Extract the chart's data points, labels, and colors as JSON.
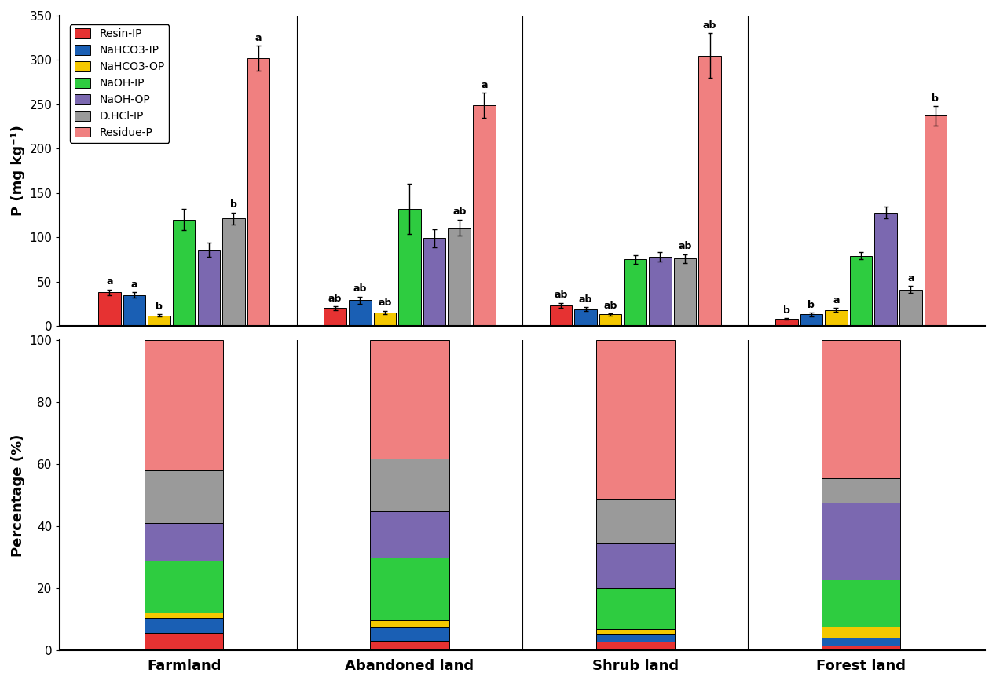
{
  "categories": [
    "Farmland",
    "Abandoned land",
    "Shrub land",
    "Forest land"
  ],
  "fractions": [
    "Resin-IP",
    "NaHCO3-IP",
    "NaHCO3-OP",
    "NaOH-IP",
    "NaOH-OP",
    "D.HCl-IP",
    "Residue-P"
  ],
  "colors": [
    "#e63232",
    "#1a5fb4",
    "#f5c800",
    "#2ecc40",
    "#7b68b0",
    "#9a9a9a",
    "#f08080"
  ],
  "bar_values": {
    "Farmland": [
      38,
      35,
      12,
      120,
      86,
      121,
      302
    ],
    "Abandoned land": [
      20,
      29,
      15,
      132,
      99,
      111,
      249
    ],
    "Shrub land": [
      23,
      19,
      13,
      75,
      78,
      76,
      305
    ],
    "Forest land": [
      8,
      13,
      18,
      79,
      128,
      41,
      237
    ]
  },
  "bar_errors": {
    "Farmland": [
      3,
      3,
      1,
      12,
      8,
      7,
      14
    ],
    "Abandoned land": [
      2,
      4,
      2,
      28,
      10,
      9,
      14
    ],
    "Shrub land": [
      3,
      2,
      1,
      5,
      5,
      5,
      25
    ],
    "Forest land": [
      1,
      2,
      2,
      4,
      7,
      4,
      11
    ]
  },
  "bar_labels": {
    "Farmland": [
      "a",
      "a",
      "b",
      "",
      "",
      "b",
      "a"
    ],
    "Abandoned land": [
      "ab",
      "ab",
      "ab",
      "",
      "",
      "ab",
      "a"
    ],
    "Shrub land": [
      "ab",
      "ab",
      "ab",
      "",
      "",
      "ab",
      "ab"
    ],
    "Forest land": [
      "b",
      "b",
      "a",
      "",
      "",
      "a",
      "b"
    ]
  },
  "pct_values": {
    "Farmland": [
      5.5,
      4.9,
      1.7,
      16.8,
      12.1,
      17.0,
      42.0
    ],
    "Abandoned land": [
      3.0,
      4.4,
      2.3,
      20.1,
      15.1,
      16.9,
      38.2
    ],
    "Shrub land": [
      2.9,
      2.4,
      1.6,
      13.1,
      14.5,
      14.1,
      51.4
    ],
    "Forest land": [
      1.5,
      2.5,
      3.5,
      15.3,
      24.7,
      7.9,
      44.6
    ]
  },
  "ylabel_top": "P (mg kg⁻¹)",
  "ylabel_bot": "Percentage (%)"
}
